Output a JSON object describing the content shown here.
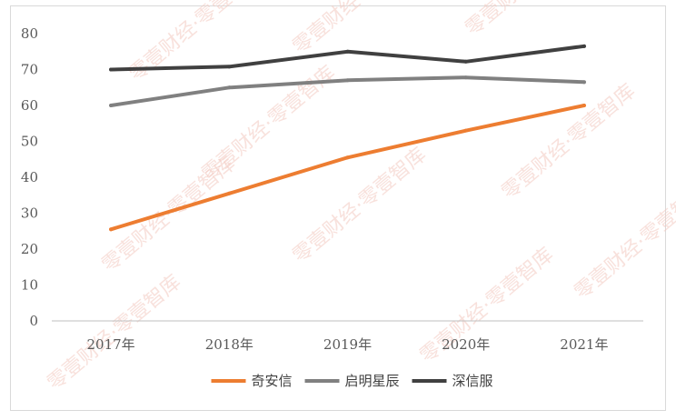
{
  "chart_data": {
    "type": "line",
    "categories": [
      "2017年",
      "2018年",
      "2019年",
      "2020年",
      "2021年"
    ],
    "ylim": [
      0,
      80
    ],
    "yticks": [
      "0",
      "10",
      "20",
      "30",
      "40",
      "50",
      "60",
      "70",
      "80"
    ],
    "grid": false,
    "legend_position": "bottom",
    "series": [
      {
        "name": "奇安信",
        "color": "#ED7D31",
        "values": [
          25.5,
          35.5,
          45.5,
          53,
          60
        ]
      },
      {
        "name": "启明星辰",
        "color": "#808080",
        "values": [
          60,
          65,
          67,
          67.8,
          66.5
        ]
      },
      {
        "name": "深信服",
        "color": "#404040",
        "values": [
          70,
          70.8,
          75,
          72.2,
          76.5
        ]
      }
    ]
  },
  "watermark": "零壹财经·零壹智库"
}
